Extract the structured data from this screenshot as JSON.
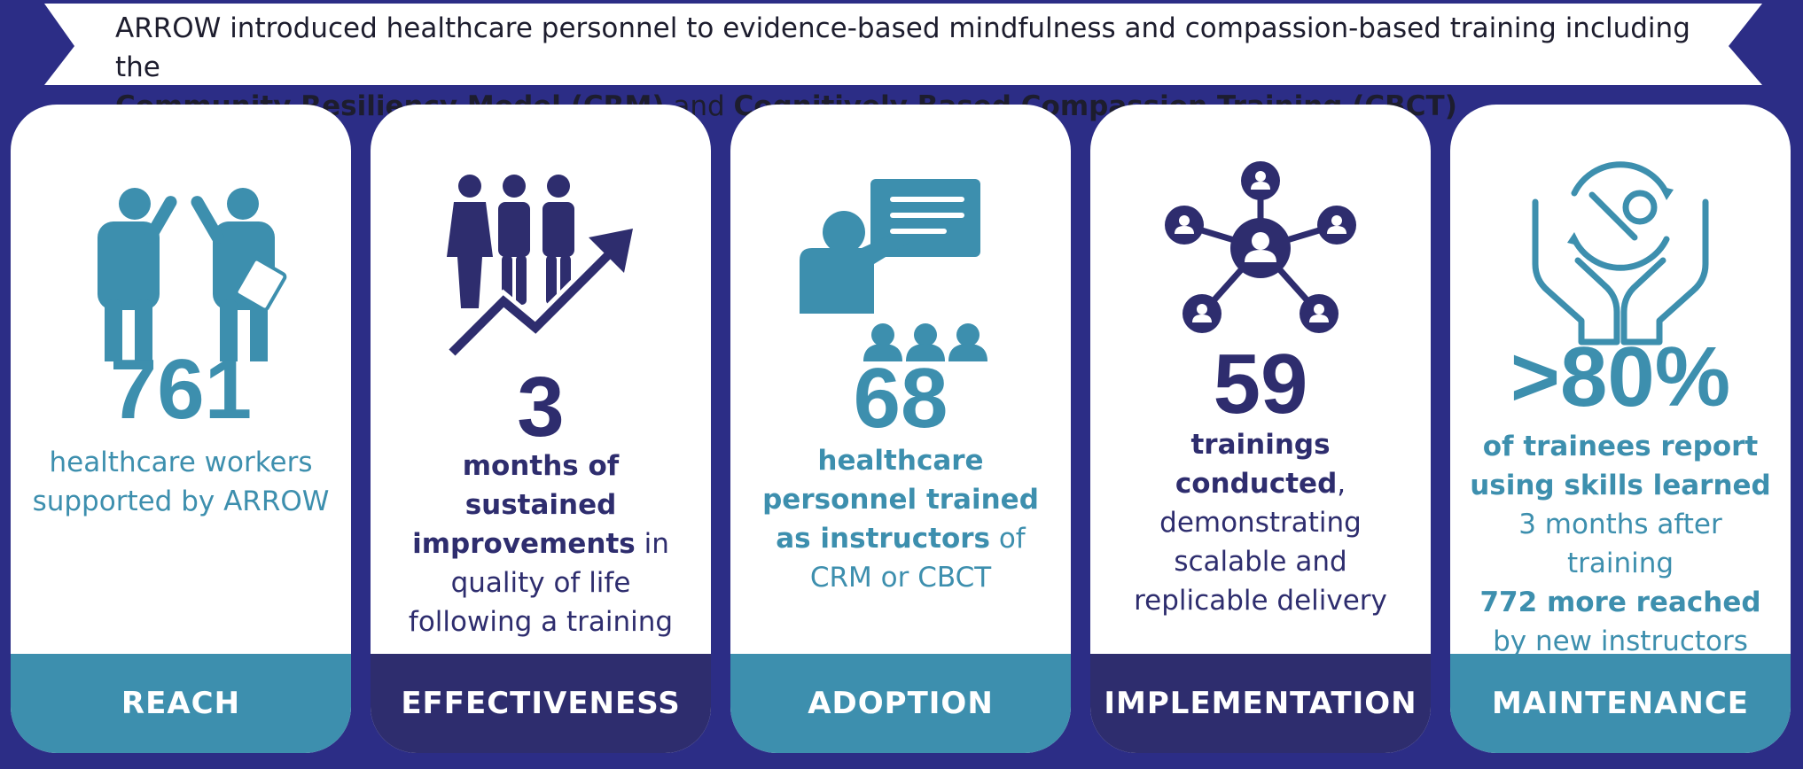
{
  "banner": {
    "line1": "ARROW introduced healthcare personnel to evidence-based mindfulness and compassion-based training including the",
    "crm": "Community Resiliency Model (CRM)",
    "and": " and ",
    "cbct": "Cognitively Based Compassion Training (CBCT)"
  },
  "cards": [
    {
      "stat": "761",
      "desc": "healthcare workers supported by ARROW",
      "footer": "REACH"
    },
    {
      "stat": "3",
      "desc_bold1": "months of sustained improvements",
      "desc_rest1": " in quality of life following a training",
      "footer": "EFFECTIVENESS"
    },
    {
      "stat": "68",
      "desc_bold1": "healthcare personnel trained as instructors",
      "desc_rest1": " of CRM or CBCT",
      "footer": "ADOPTION"
    },
    {
      "stat": "59",
      "desc_bold1": "trainings conducted",
      "desc_rest1": ", demonstrating scalable and replicable delivery",
      "footer": "IMPLEMENTATION"
    },
    {
      "stat": ">80%",
      "desc_bold1": "of trainees report using skills learned",
      "desc_rest1": " 3 months after training",
      "desc_bold2": "772 more reached",
      "desc_rest2": " by new instructors",
      "footer": "MAINTENANCE"
    }
  ],
  "colors": {
    "background": "#2c2d86",
    "teal": "#3d8fae",
    "navy": "#2e2d6e"
  },
  "icons": [
    "healthcare-workers-icon",
    "growth-chart-icon",
    "presentation-icon",
    "network-icon",
    "maintenance-hands-icon"
  ]
}
